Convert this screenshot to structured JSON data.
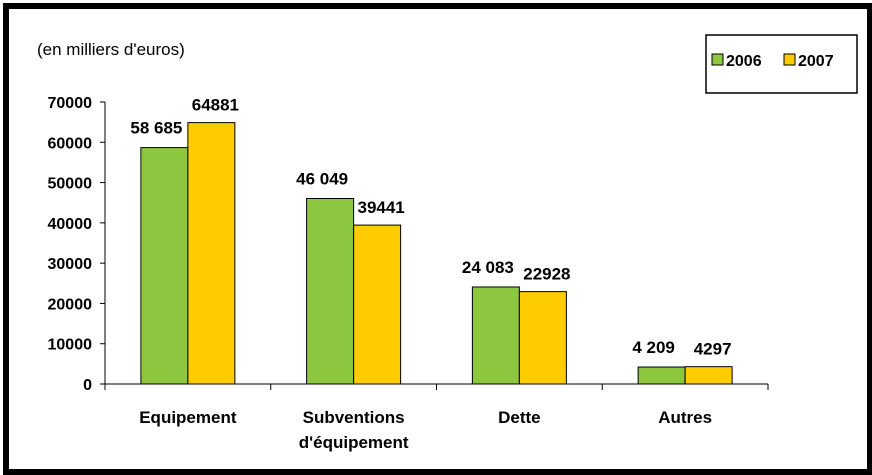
{
  "chart_data": {
    "type": "bar",
    "subtitle": "(en milliers d'euros)",
    "categories": [
      [
        "Equipement"
      ],
      [
        "Subventions",
        "d'équipement"
      ],
      [
        "Dette"
      ],
      [
        "Autres"
      ]
    ],
    "series": [
      {
        "name": "2006",
        "color": "#8DC63F",
        "values": [
          58685,
          46049,
          24083,
          4209
        ],
        "labels": [
          "58 685",
          "46 049",
          "24 083",
          "4 209"
        ]
      },
      {
        "name": "2007",
        "color": "#FFCC00",
        "values": [
          64881,
          39441,
          22928,
          4297
        ],
        "labels": [
          "64881",
          "39441",
          "22928",
          "4297"
        ]
      }
    ],
    "yticks": [
      "0",
      "10000",
      "20000",
      "30000",
      "40000",
      "50000",
      "60000",
      "70000"
    ],
    "ylim": [
      0,
      70000
    ],
    "legend": "top-right",
    "grid": false
  }
}
